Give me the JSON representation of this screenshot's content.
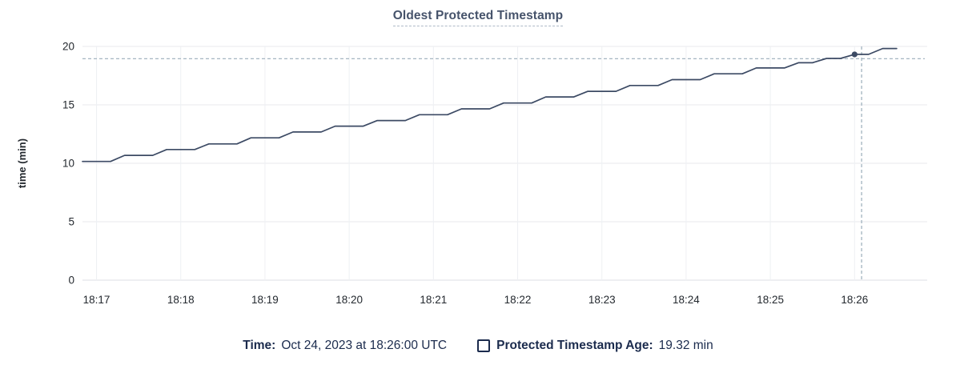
{
  "title": {
    "text": "Oldest Protected Timestamp"
  },
  "legend": {
    "time_label": "Time:",
    "time_value": "Oct 24, 2023 at 18:26:00 UTC",
    "series_label": "Protected Timestamp Age:",
    "series_value": "19.32 min"
  },
  "colors": {
    "line": "#3c4a64",
    "dot": "#3c4a64",
    "grid_h": "#e8eaee",
    "grid_h_zero": "#dcdfe4",
    "grid_v": "#eef0f3",
    "tick_text": "#24292f",
    "axis_label_text": "#24292f",
    "title_text": "#46536b",
    "legend_text": "#1b2b4d",
    "crosshair": "#9aacb9"
  },
  "chart_data": {
    "type": "line",
    "title": "Oldest Protected Timestamp",
    "xlabel": "",
    "ylabel": "time (min)",
    "ylim": [
      0,
      20
    ],
    "y_ticks": [
      0,
      5,
      10,
      15,
      20
    ],
    "x_ticks": [
      "18:17",
      "18:18",
      "18:19",
      "18:20",
      "18:21",
      "18:22",
      "18:23",
      "18:24",
      "18:25",
      "18:26"
    ],
    "x_tick_offsets_s": [
      10,
      70,
      130,
      190,
      250,
      310,
      370,
      430,
      490,
      550
    ],
    "x_start_time": "18:16:50",
    "x_end_time": "18:26:30",
    "grid": true,
    "legend_position": "bottom",
    "series": [
      {
        "name": "Protected Timestamp Age",
        "unit": "min",
        "points": [
          [
            0,
            10.16
          ],
          [
            10,
            10.16
          ],
          [
            20,
            10.16
          ],
          [
            30,
            10.68
          ],
          [
            40,
            10.68
          ],
          [
            50,
            10.68
          ],
          [
            60,
            11.18
          ],
          [
            70,
            11.18
          ],
          [
            80,
            11.18
          ],
          [
            90,
            11.66
          ],
          [
            100,
            11.66
          ],
          [
            110,
            11.66
          ],
          [
            120,
            12.18
          ],
          [
            130,
            12.18
          ],
          [
            140,
            12.18
          ],
          [
            150,
            12.68
          ],
          [
            160,
            12.68
          ],
          [
            170,
            12.68
          ],
          [
            180,
            13.18
          ],
          [
            190,
            13.18
          ],
          [
            200,
            13.18
          ],
          [
            210,
            13.66
          ],
          [
            220,
            13.66
          ],
          [
            230,
            13.66
          ],
          [
            240,
            14.16
          ],
          [
            250,
            14.16
          ],
          [
            260,
            14.16
          ],
          [
            270,
            14.66
          ],
          [
            280,
            14.66
          ],
          [
            290,
            14.66
          ],
          [
            300,
            15.16
          ],
          [
            310,
            15.16
          ],
          [
            320,
            15.16
          ],
          [
            330,
            15.68
          ],
          [
            340,
            15.68
          ],
          [
            350,
            15.68
          ],
          [
            360,
            16.16
          ],
          [
            370,
            16.16
          ],
          [
            380,
            16.16
          ],
          [
            390,
            16.66
          ],
          [
            400,
            16.66
          ],
          [
            410,
            16.66
          ],
          [
            420,
            17.16
          ],
          [
            430,
            17.16
          ],
          [
            440,
            17.16
          ],
          [
            450,
            17.66
          ],
          [
            460,
            17.66
          ],
          [
            470,
            17.66
          ],
          [
            480,
            18.16
          ],
          [
            490,
            18.16
          ],
          [
            500,
            18.16
          ],
          [
            510,
            18.6
          ],
          [
            520,
            18.6
          ],
          [
            530,
            18.97
          ],
          [
            540,
            18.97
          ],
          [
            550,
            19.32
          ],
          [
            560,
            19.32
          ],
          [
            570,
            19.82
          ],
          [
            580,
            19.82
          ]
        ]
      }
    ],
    "hover_point": {
      "time": "18:26:00",
      "offset_s": 550,
      "value": 19.32,
      "crosshair_offset_s": 555,
      "crosshair_value": 18.95
    }
  }
}
